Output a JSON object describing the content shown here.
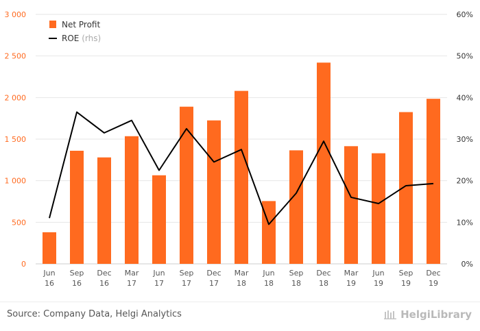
{
  "chart_data": {
    "type": "bar+line",
    "categories": [
      [
        "Jun",
        "16"
      ],
      [
        "Sep",
        "16"
      ],
      [
        "Dec",
        "16"
      ],
      [
        "Mar",
        "17"
      ],
      [
        "Jun",
        "17"
      ],
      [
        "Sep",
        "17"
      ],
      [
        "Dec",
        "17"
      ],
      [
        "Mar",
        "18"
      ],
      [
        "Jun",
        "18"
      ],
      [
        "Sep",
        "18"
      ],
      [
        "Dec",
        "18"
      ],
      [
        "Mar",
        "19"
      ],
      [
        "Jun",
        "19"
      ],
      [
        "Sep",
        "19"
      ],
      [
        "Dec",
        "19"
      ]
    ],
    "series": [
      {
        "name": "Net Profit",
        "type": "bar",
        "axis": "left",
        "color": "#ff6a1f",
        "values": [
          380,
          1360,
          1280,
          1535,
          1065,
          1890,
          1725,
          2080,
          755,
          1365,
          2420,
          1415,
          1330,
          1825,
          1985
        ]
      },
      {
        "name": "ROE",
        "suffix": "(rhs)",
        "type": "line",
        "axis": "right",
        "color": "#000000",
        "values": [
          11,
          36.5,
          31.5,
          34.5,
          22.5,
          32.5,
          24.5,
          27.5,
          9.5,
          17,
          29.5,
          16,
          14.5,
          18.8,
          19.3
        ]
      }
    ],
    "y_left": {
      "min": 0,
      "max": 3000,
      "ticks": [
        0,
        500,
        1000,
        1500,
        2000,
        2500,
        3000
      ],
      "tick_labels": [
        "0",
        "500",
        "1 000",
        "1 500",
        "2 000",
        "2 500",
        "3 000"
      ]
    },
    "y_right": {
      "min": 0,
      "max": 60,
      "ticks": [
        0,
        10,
        20,
        30,
        40,
        50,
        60
      ],
      "tick_labels": [
        "0%",
        "10%",
        "20%",
        "30%",
        "40%",
        "50%",
        "60%"
      ]
    },
    "legend": {
      "placement": "top-left"
    }
  },
  "source_text": "Source: Company Data, Helgi Analytics",
  "brand_text": "HelgiLibrary"
}
